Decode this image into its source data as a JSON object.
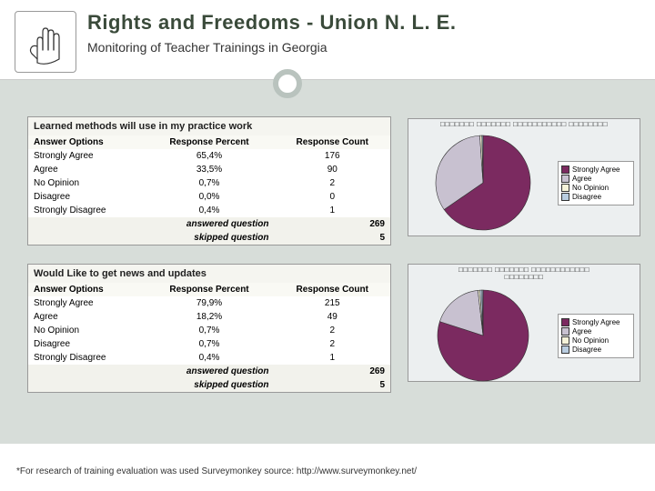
{
  "header": {
    "title": "Rights and Freedoms - Union N. L. E.",
    "subtitle": "Monitoring of Teacher Trainings in Georgia"
  },
  "legend_items": [
    {
      "label": "Strongly Agree",
      "color": "#7b2a60"
    },
    {
      "label": "Agree",
      "color": "#c8c1d0"
    },
    {
      "label": "No Opinion",
      "color": "#f5f3d9"
    },
    {
      "label": "Disagree",
      "color": "#b9cde0"
    }
  ],
  "q1": {
    "title": "Learned methods will use in my practice work",
    "chart_title": "□□□□□□□ □□□□□□□ □□□□□□□□□□□ □□□□□□□□",
    "cols": [
      "Answer Options",
      "Response Percent",
      "Response Count"
    ],
    "rows": [
      {
        "label": "Strongly Agree",
        "percent": "65,4%",
        "count": "176"
      },
      {
        "label": "Agree",
        "percent": "33,5%",
        "count": "90"
      },
      {
        "label": "No Opinion",
        "percent": "0,7%",
        "count": "2"
      },
      {
        "label": "Disagree",
        "percent": "0,0%",
        "count": "0"
      },
      {
        "label": "Strongly Disagree",
        "percent": "0,4%",
        "count": "1"
      }
    ],
    "answered_label": "answered question",
    "answered": "269",
    "skipped_label": "skipped question",
    "skipped": "5",
    "pie": [
      {
        "value": 65.4,
        "color": "#7b2a60"
      },
      {
        "value": 33.5,
        "color": "#c8c1d0"
      },
      {
        "value": 0.7,
        "color": "#f5f3d9"
      },
      {
        "value": 0.0,
        "color": "#b9cde0"
      },
      {
        "value": 0.4,
        "color": "#8fa3b8"
      }
    ]
  },
  "q2": {
    "title": "Would Like to get news and updates",
    "chart_title": "□□□□□□□ □□□□□□□ □□□□□□□□□□□□\n□□□□□□□□",
    "cols": [
      "Answer Options",
      "Response Percent",
      "Response Count"
    ],
    "rows": [
      {
        "label": "Strongly Agree",
        "percent": "79,9%",
        "count": "215"
      },
      {
        "label": "Agree",
        "percent": "18,2%",
        "count": "49"
      },
      {
        "label": "No Opinion",
        "percent": "0,7%",
        "count": "2"
      },
      {
        "label": "Disagree",
        "percent": "0,7%",
        "count": "2"
      },
      {
        "label": "Strongly Disagree",
        "percent": "0,4%",
        "count": "1"
      }
    ],
    "answered_label": "answered question",
    "answered": "269",
    "skipped_label": "skipped question",
    "skipped": "5",
    "pie": [
      {
        "value": 79.9,
        "color": "#7b2a60"
      },
      {
        "value": 18.2,
        "color": "#c8c1d0"
      },
      {
        "value": 0.7,
        "color": "#f5f3d9"
      },
      {
        "value": 0.7,
        "color": "#b9cde0"
      },
      {
        "value": 0.4,
        "color": "#8fa3b8"
      }
    ]
  },
  "footnote": "*For research of training evaluation was used Surveymonkey source: http://www.surveymonkey.net/"
}
